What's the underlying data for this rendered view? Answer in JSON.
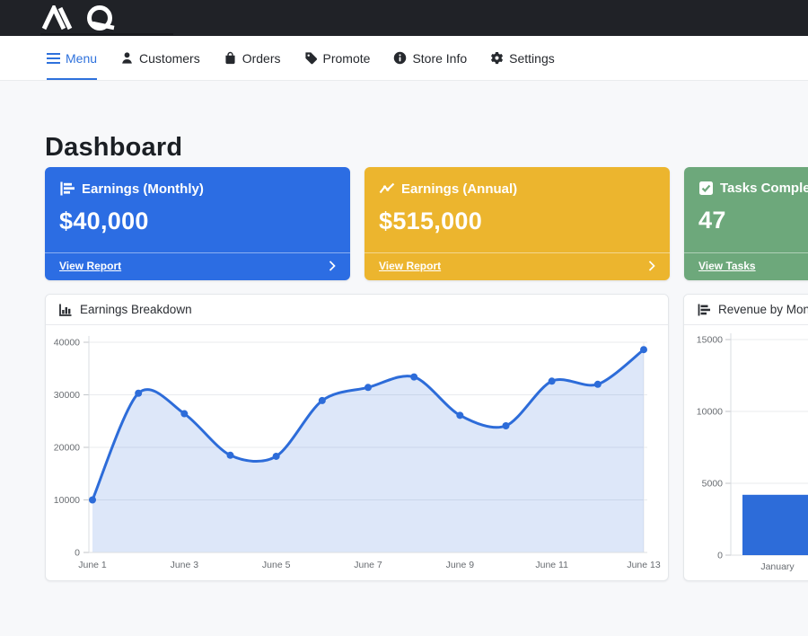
{
  "topbar": {
    "brand": "MQ"
  },
  "nav": {
    "items": [
      {
        "label": "Menu",
        "icon": "hamburger-icon",
        "active": true
      },
      {
        "label": "Customers",
        "icon": "person-icon",
        "active": false
      },
      {
        "label": "Orders",
        "icon": "bag-icon",
        "active": false
      },
      {
        "label": "Promote",
        "icon": "tag-icon",
        "active": false
      },
      {
        "label": "Store Info",
        "icon": "info-icon",
        "active": false
      },
      {
        "label": "Settings",
        "icon": "gear-icon",
        "active": false
      }
    ]
  },
  "page": {
    "title": "Dashboard"
  },
  "stat_cards": [
    {
      "title": "Earnings (Monthly)",
      "value": "$40,000",
      "link_label": "View Report",
      "color": "#2c6de3",
      "icon": "bar-chart-icon"
    },
    {
      "title": "Earnings (Annual)",
      "value": "$515,000",
      "link_label": "View Report",
      "color": "#ecb52e",
      "icon": "line-chart-icon"
    },
    {
      "title": "Tasks Completed",
      "value": "47",
      "link_label": "View Tasks",
      "color": "#6da87b",
      "icon": "check-square-icon"
    }
  ],
  "chart_data": [
    {
      "type": "line",
      "title": "Earnings Breakdown",
      "categories": [
        "June 1",
        "June 2",
        "June 3",
        "June 4",
        "June 5",
        "June 6",
        "June 7",
        "June 8",
        "June 9",
        "June 10",
        "June 11",
        "June 12",
        "June 13"
      ],
      "values": [
        10000,
        30300,
        26400,
        18500,
        18300,
        28900,
        31400,
        33400,
        26100,
        24100,
        32600,
        32000,
        38600
      ],
      "xtick_labels": [
        "June 1",
        "June 3",
        "June 5",
        "June 7",
        "June 9",
        "June 11",
        "June 13"
      ],
      "ylim": [
        0,
        40000
      ],
      "yticks": [
        0,
        10000,
        20000,
        30000,
        40000
      ],
      "grid": true,
      "legend": "none",
      "line_color": "#2d6cd9",
      "fill_color": "rgba(45,108,217,0.16)"
    },
    {
      "type": "bar",
      "title": "Revenue by Month",
      "categories": [
        "January"
      ],
      "values": [
        4200
      ],
      "ylim": [
        0,
        15000
      ],
      "yticks": [
        0,
        5000,
        10000,
        15000
      ],
      "grid": true,
      "legend": "none",
      "bar_color": "#2d6cd9"
    }
  ]
}
